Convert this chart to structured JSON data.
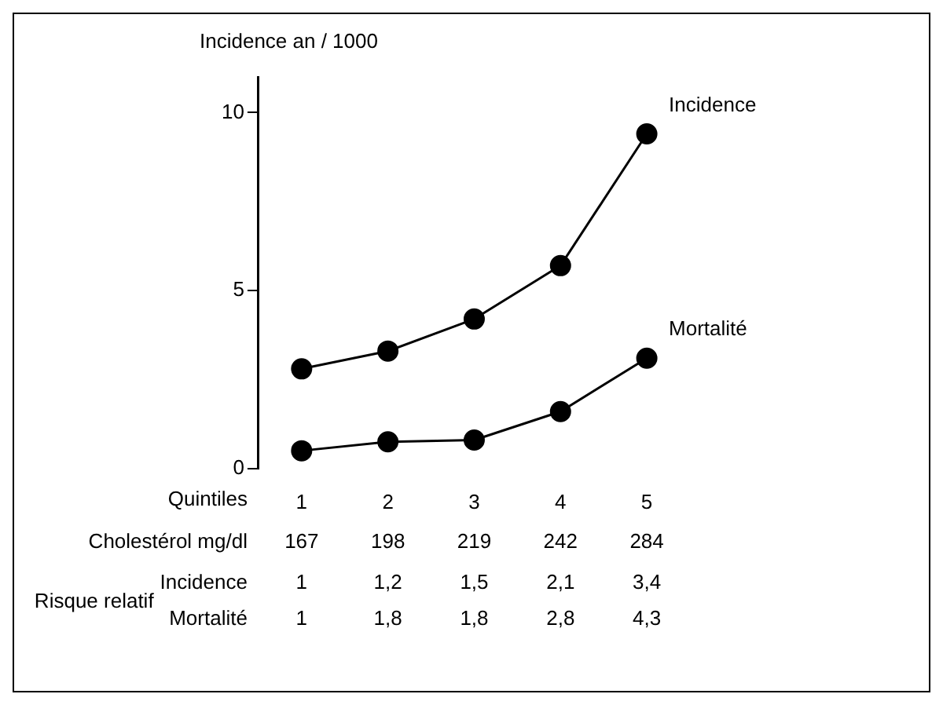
{
  "chart_data": {
    "type": "line",
    "ylabel": "Incidence an / 1000",
    "xlabel": "Quintiles",
    "categories": [
      "1",
      "2",
      "3",
      "4",
      "5"
    ],
    "series": [
      {
        "name": "Incidence",
        "color": "#000000",
        "values": [
          2.8,
          3.3,
          4.2,
          5.7,
          9.4
        ]
      },
      {
        "name": "Mortalité",
        "color": "#000000",
        "values": [
          0.5,
          0.75,
          0.8,
          1.6,
          3.1
        ]
      }
    ],
    "ylim": [
      0,
      11
    ],
    "yticks": [
      0,
      5,
      10
    ],
    "grid": false,
    "legend": false,
    "marker": "circle",
    "line_style": "solid",
    "annotations": [
      "Cholestérol mg/dl",
      "167",
      "198",
      "219",
      "242",
      "284",
      "Risque relatif",
      "Incidence",
      "1",
      "1,2",
      "1,5",
      "2,1",
      "3,4",
      "Mortalité",
      "1",
      "1,8",
      "1,8",
      "2,8",
      "4,3"
    ]
  }
}
